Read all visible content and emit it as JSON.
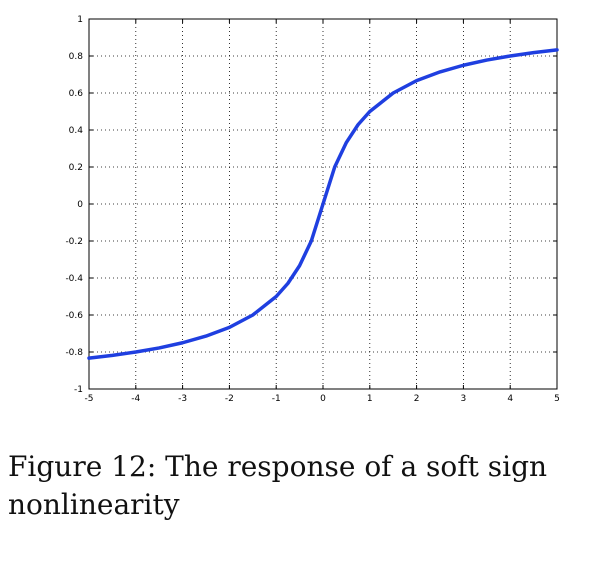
{
  "chart_data": {
    "type": "line",
    "title": "",
    "xlabel": "",
    "ylabel": "",
    "xlim": [
      -5,
      5
    ],
    "ylim": [
      -1,
      1
    ],
    "grid": true,
    "x_ticks": [
      -5,
      -4,
      -3,
      -2,
      -1,
      0,
      1,
      2,
      3,
      4,
      5
    ],
    "y_ticks": [
      -1,
      -0.8,
      -0.6,
      -0.4,
      -0.2,
      0,
      0.2,
      0.4,
      0.6,
      0.8,
      1
    ],
    "x_tick_labels": [
      "-5",
      "-4",
      "-3",
      "-2",
      "-1",
      "0",
      "1",
      "2",
      "3",
      "4",
      "5"
    ],
    "y_tick_labels": [
      "-1",
      "-0.8",
      "-0.6",
      "-0.4",
      "-0.2",
      "0",
      "0.2",
      "0.4",
      "0.6",
      "0.8",
      "1"
    ],
    "series": [
      {
        "color": "#1f3fe0",
        "x": [
          -5,
          -4.5,
          -4,
          -3.5,
          -3,
          -2.5,
          -2,
          -1.5,
          -1,
          -0.75,
          -0.5,
          -0.25,
          0,
          0.25,
          0.5,
          0.75,
          1,
          1.5,
          2,
          2.5,
          3,
          3.5,
          4,
          4.5,
          5
        ],
        "y": [
          -0.833,
          -0.818,
          -0.8,
          -0.778,
          -0.75,
          -0.714,
          -0.667,
          -0.6,
          -0.5,
          -0.429,
          -0.333,
          -0.2,
          0,
          0.2,
          0.333,
          0.429,
          0.5,
          0.6,
          0.667,
          0.714,
          0.75,
          0.778,
          0.8,
          0.818,
          0.833
        ]
      }
    ]
  },
  "caption": "Figure 12: The response of a soft sign nonlinearity"
}
